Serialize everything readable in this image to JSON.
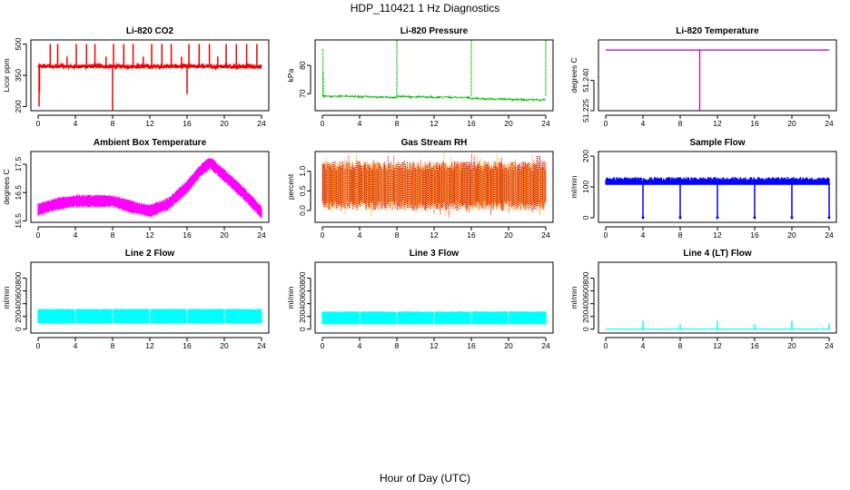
{
  "figure": {
    "title": "HDP_110421  1 Hz Diagnostics",
    "xlabel": "Hour of Day (UTC)"
  },
  "chart_data": [
    {
      "id": "co2",
      "type": "line",
      "title": "Li-820 CO2",
      "ylabel": "Licor ppm",
      "color": "#ee0000",
      "xlim": [
        0,
        24
      ],
      "ylim": [
        180,
        520
      ],
      "xticks": [
        0,
        4,
        8,
        12,
        16,
        20,
        24
      ],
      "yticks": [
        200,
        350,
        500
      ],
      "ytick_labels": [
        "200",
        "350",
        "500"
      ],
      "series": [
        {
          "name": "CO2",
          "baseline": 393,
          "noise": 8,
          "spikes": [
            [
              0.1,
              200
            ],
            [
              0.15,
              270
            ],
            [
              1.3,
              500
            ],
            [
              2.1,
              500
            ],
            [
              3.1,
              440
            ],
            [
              4.1,
              500
            ],
            [
              5.2,
              500
            ],
            [
              6.1,
              500
            ],
            [
              7.3,
              440
            ],
            [
              8.0,
              180
            ],
            [
              8.1,
              500
            ],
            [
              9.2,
              500
            ],
            [
              10.2,
              500
            ],
            [
              11.3,
              440
            ],
            [
              12.2,
              500
            ],
            [
              13.3,
              500
            ],
            [
              14.3,
              500
            ],
            [
              15.4,
              440
            ],
            [
              16.0,
              260
            ],
            [
              16.2,
              500
            ],
            [
              17.3,
              500
            ],
            [
              18.4,
              500
            ],
            [
              19.3,
              440
            ],
            [
              20.2,
              500
            ],
            [
              21.3,
              500
            ],
            [
              22.4,
              500
            ],
            [
              23.5,
              500
            ]
          ]
        }
      ]
    },
    {
      "id": "pressure",
      "type": "line",
      "title": "Li-820 Pressure",
      "ylabel": "kPa",
      "color": "#00bb00",
      "xlim": [
        0,
        24
      ],
      "ylim": [
        64,
        89
      ],
      "xticks": [
        0,
        4,
        8,
        12,
        16,
        20,
        24
      ],
      "yticks": [
        70,
        80
      ],
      "ytick_labels": [
        "70",
        "80"
      ],
      "series": [
        {
          "name": "Pressure",
          "start": 69.2,
          "end": 67.8,
          "noise": 0.25,
          "spikes": [
            [
              0.05,
              86
            ],
            [
              0.1,
              78
            ],
            [
              8.0,
              89
            ],
            [
              16.0,
              89
            ],
            [
              24.0,
              89
            ]
          ]
        }
      ]
    },
    {
      "id": "temp",
      "type": "line",
      "title": "Li-820 Temperature",
      "ylabel": "degrees C",
      "color": "#bb00bb",
      "xlim": [
        0,
        24
      ],
      "ylim": [
        51.225,
        51.26
      ],
      "xticks": [
        0,
        4,
        8,
        12,
        16,
        20,
        24
      ],
      "yticks": [
        51.225,
        51.24
      ],
      "ytick_labels": [
        "51.225",
        "51.240"
      ],
      "series": [
        {
          "name": "Temperature",
          "level": 51.255,
          "dips": [
            [
              10.1,
              51.225
            ]
          ]
        }
      ]
    },
    {
      "id": "ambient",
      "type": "line",
      "title": "Ambient Box Temperature",
      "ylabel": "degrees C",
      "color": "#ff00ff",
      "xlim": [
        0,
        24
      ],
      "ylim": [
        15.45,
        17.95
      ],
      "xticks": [
        0,
        4,
        8,
        12,
        16,
        20,
        24
      ],
      "yticks": [
        15.5,
        16.5,
        17.5
      ],
      "ytick_labels": [
        "15.5",
        "16.5",
        "17.5"
      ],
      "series": [
        {
          "name": "Ambient",
          "profile": [
            [
              0,
              15.9
            ],
            [
              2,
              16.1
            ],
            [
              4,
              16.2
            ],
            [
              6,
              16.2
            ],
            [
              8,
              16.2
            ],
            [
              10,
              16.0
            ],
            [
              12,
              15.85
            ],
            [
              14,
              16.1
            ],
            [
              16,
              16.7
            ],
            [
              17.5,
              17.3
            ],
            [
              18.5,
              17.55
            ],
            [
              20,
              17.1
            ],
            [
              22,
              16.5
            ],
            [
              24,
              15.8
            ]
          ],
          "band": 0.35
        }
      ]
    },
    {
      "id": "rh",
      "type": "line",
      "title": "Gas Stream RH",
      "ylabel": "percent",
      "color": "#ff9900",
      "color2": "#cc0000",
      "xlim": [
        0,
        24
      ],
      "ylim": [
        -0.3,
        1.5
      ],
      "xticks": [
        0,
        4,
        8,
        12,
        16,
        20,
        24
      ],
      "yticks": [
        0.0,
        0.5,
        1.0
      ],
      "ytick_labels": [
        "0.0",
        "0.5",
        "1.0"
      ],
      "series": [
        {
          "name": "RH",
          "low": 0.0,
          "high": 1.25,
          "center": 0.6
        }
      ]
    },
    {
      "id": "sample",
      "type": "line",
      "title": "Sample Flow",
      "ylabel": "ml/min",
      "color": "#0000ff",
      "xlim": [
        0,
        24
      ],
      "ylim": [
        -15,
        215
      ],
      "xticks": [
        0,
        4,
        8,
        12,
        16,
        20,
        24
      ],
      "yticks": [
        0,
        100,
        200
      ],
      "ytick_labels": [
        "0",
        "100",
        "200"
      ],
      "series": [
        {
          "name": "Sample Flow",
          "baseline": 112,
          "band": 20,
          "dips": [
            [
              4.0,
              0
            ],
            [
              8.0,
              0
            ],
            [
              12.0,
              0
            ],
            [
              16.0,
              0
            ],
            [
              20.0,
              0
            ],
            [
              24.0,
              0
            ]
          ]
        }
      ]
    },
    {
      "id": "line2",
      "type": "line",
      "title": "Line 2 Flow",
      "ylabel": "ml/min",
      "color": "#00ffff",
      "xlim": [
        0,
        24
      ],
      "ylim": [
        -60,
        1050
      ],
      "xticks": [
        0,
        4,
        8,
        12,
        16,
        20,
        24
      ],
      "yticks": [
        0,
        200,
        400,
        600,
        800
      ],
      "ytick_labels": [
        "0",
        "200",
        "400",
        "600",
        "800"
      ],
      "series": [
        {
          "name": "Line 2",
          "low": 90,
          "high": 320,
          "gaps": [
            4.0,
            8.0,
            12.0,
            16.0,
            20.0
          ]
        }
      ]
    },
    {
      "id": "line3",
      "type": "line",
      "title": "Line 3 Flow",
      "ylabel": "ml/min",
      "color": "#00ffff",
      "xlim": [
        0,
        24
      ],
      "ylim": [
        -60,
        1050
      ],
      "xticks": [
        0,
        4,
        8,
        12,
        16,
        20,
        24
      ],
      "yticks": [
        0,
        200,
        400,
        600,
        800
      ],
      "ytick_labels": [
        "0",
        "200",
        "400",
        "600",
        "800"
      ],
      "series": [
        {
          "name": "Line 3",
          "low": 80,
          "high": 280,
          "gaps": [
            4.0,
            8.0,
            12.0,
            16.0,
            20.0
          ]
        }
      ]
    },
    {
      "id": "line4",
      "type": "line",
      "title": "Line 4 (LT) Flow",
      "ylabel": "ml/min",
      "color": "#00ffff",
      "xlim": [
        0,
        24
      ],
      "ylim": [
        -60,
        1050
      ],
      "xticks": [
        0,
        4,
        8,
        12,
        16,
        20,
        24
      ],
      "yticks": [
        0,
        200,
        400,
        600,
        800
      ],
      "ytick_labels": [
        "0",
        "200",
        "400",
        "600",
        "800"
      ],
      "series": [
        {
          "name": "Line 4",
          "baseline": 0,
          "spikes": [
            [
              4.0,
              130
            ],
            [
              8.0,
              80
            ],
            [
              12.0,
              130
            ],
            [
              16.0,
              80
            ],
            [
              20.0,
              130
            ],
            [
              24.0,
              80
            ]
          ]
        }
      ]
    }
  ]
}
